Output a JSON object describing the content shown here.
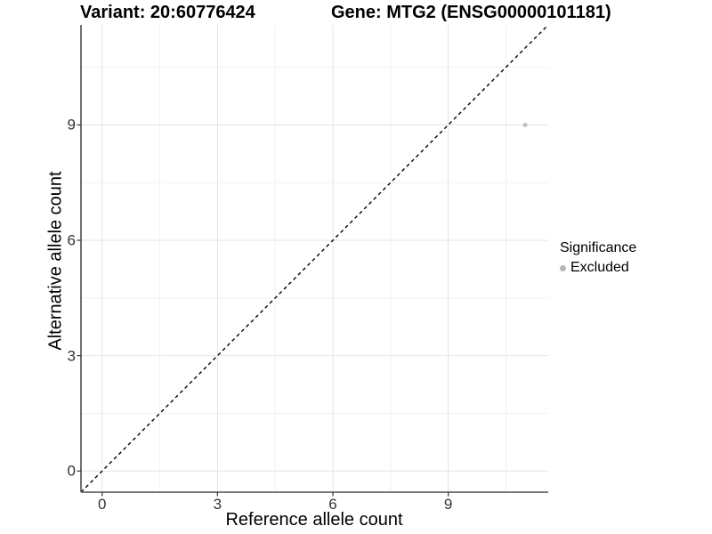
{
  "header": {
    "variant_title": "Variant: 20:60776424",
    "gene_title": "Gene: MTG2 (ENSG00000101181)"
  },
  "legend": {
    "title": "Significance",
    "items": [
      {
        "label": "Excluded",
        "color": "#b5b5b5",
        "marker": "dot"
      }
    ]
  },
  "colors": {
    "background": "#ffffff",
    "axis_line": "#4d4d4d",
    "tick_mark": "#333333",
    "tick_label": "#333333",
    "grid_major": "#e4e4e4",
    "grid_minor": "#f1f1f1",
    "identity_line": "#000000",
    "point": "#bdbdbd"
  },
  "chart_data": {
    "type": "scatter",
    "title": "Variant: 20:60776424 | Gene: MTG2 (ENSG00000101181)",
    "xlabel": "Reference allele count",
    "ylabel": "Alternative allele count",
    "xlim": [
      -0.55,
      11.6
    ],
    "ylim": [
      -0.55,
      11.6
    ],
    "x_ticks": [
      0,
      3,
      6,
      9
    ],
    "y_ticks": [
      0,
      3,
      6,
      9
    ],
    "x_minor_ticks": [
      1.5,
      4.5,
      7.5,
      10.5
    ],
    "y_minor_ticks": [
      1.5,
      4.5,
      7.5,
      10.5
    ],
    "grid": true,
    "legend_position": "right",
    "reference_line": {
      "kind": "identity",
      "style": "dashed",
      "color": "#000000"
    },
    "series": [
      {
        "name": "Excluded",
        "color": "#bdbdbd",
        "points": [
          {
            "x": 11,
            "y": 9
          }
        ]
      }
    ]
  }
}
